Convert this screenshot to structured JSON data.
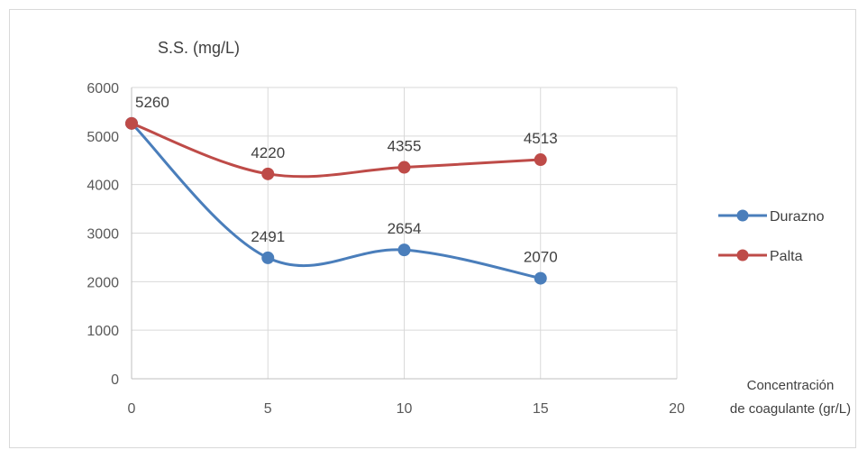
{
  "chart_data": {
    "type": "line",
    "ylabel": "S.S. (mg/L)",
    "xlabel_line1": "Concentración",
    "xlabel_line2": "de coagulante (gr/L)",
    "xlim": [
      0,
      20
    ],
    "ylim": [
      0,
      6000
    ],
    "x_ticks": [
      0,
      5,
      10,
      15,
      20
    ],
    "y_ticks": [
      0,
      1000,
      2000,
      3000,
      4000,
      5000,
      6000
    ],
    "grid": true,
    "smooth": true,
    "legend_position": "right",
    "series": [
      {
        "name": "Durazno",
        "color": "#4a7ebb",
        "points": [
          [
            0,
            5260
          ],
          [
            5,
            2491
          ],
          [
            10,
            2654
          ],
          [
            15,
            2070
          ]
        ],
        "labels": [
          "",
          "2491",
          "2654",
          "2070"
        ]
      },
      {
        "name": "Palta",
        "color": "#be4b48",
        "points": [
          [
            0,
            5260
          ],
          [
            5,
            4220
          ],
          [
            10,
            4355
          ],
          [
            15,
            4513
          ]
        ],
        "labels": [
          "5260",
          "4220",
          "4355",
          "4513"
        ]
      }
    ]
  }
}
